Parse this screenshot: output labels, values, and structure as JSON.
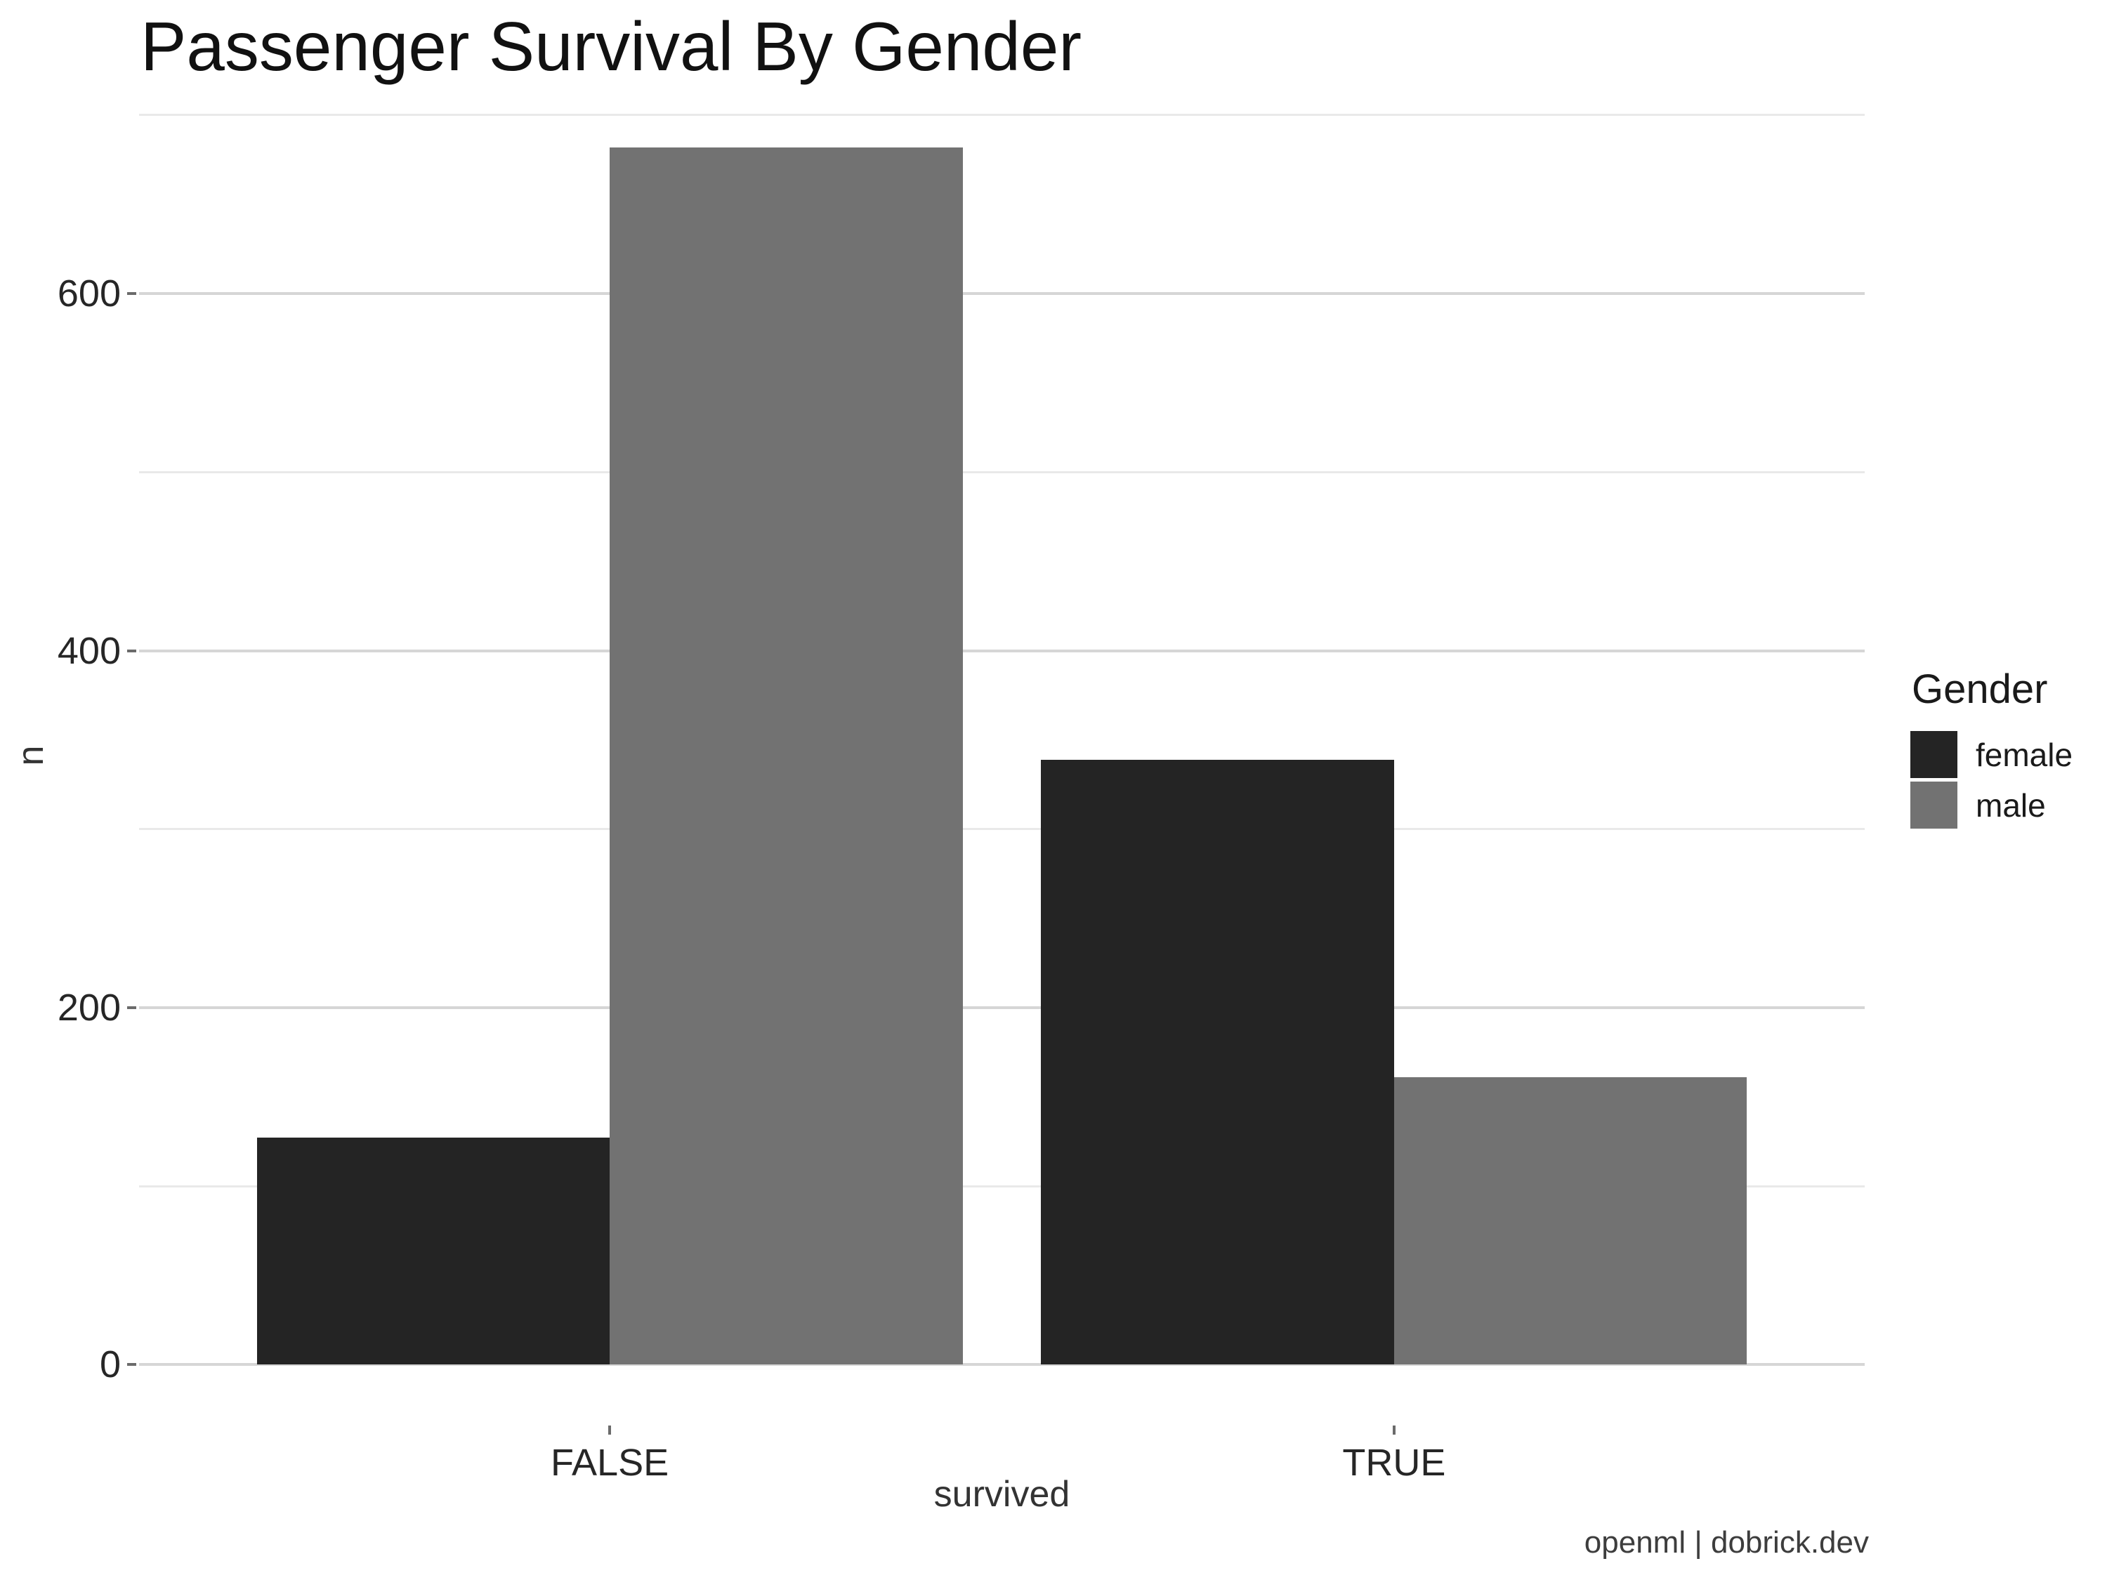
{
  "page": {
    "background": "#ffffff"
  },
  "chart_data": {
    "type": "bar",
    "title": "Passenger Survival By Gender",
    "xlabel": "survived",
    "ylabel": "n",
    "caption": "openml | dobrick.dev",
    "categories": [
      "FALSE",
      "TRUE"
    ],
    "series": [
      {
        "name": "female",
        "color": "#242424",
        "values": [
          127,
          339
        ]
      },
      {
        "name": "male",
        "color": "#727272",
        "values": [
          682,
          161
        ]
      }
    ],
    "legend": {
      "title": "Gender",
      "position": "right"
    },
    "y_axis": {
      "ticks": [
        0,
        200,
        400,
        600
      ],
      "minor_ticks": [
        100,
        300,
        500,
        700
      ],
      "domain": [
        -34.1,
        716.1
      ],
      "grid": true
    },
    "x_axis": {
      "domain": [
        0.4,
        2.6
      ],
      "bar_group_width": 0.9
    },
    "ylim": [
      0,
      682
    ]
  },
  "colors": {
    "grid_major": "#d6d6d6",
    "grid_minor": "#e9e9e9",
    "tick": "#6b6b6b",
    "axis_text": "#262626",
    "axis_title": "#333333",
    "title_text": "#111111",
    "caption_text": "#3d3d3d",
    "legend_text": "#1a1a1a"
  }
}
